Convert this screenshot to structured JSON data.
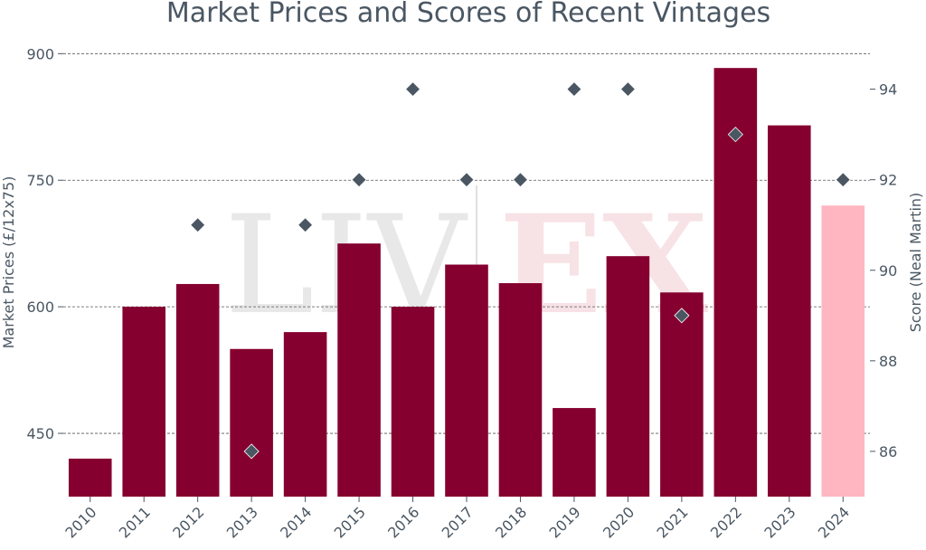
{
  "chart_data": {
    "type": "bar",
    "title": "Market Prices and Scores of Recent Vintages",
    "ylabel": "Market Prices (£/12x75)",
    "y2label": "Score (Neal Martin)",
    "categories": [
      "2010",
      "2011",
      "2012",
      "2013",
      "2014",
      "2015",
      "2016",
      "2017",
      "2018",
      "2019",
      "2020",
      "2021",
      "2022",
      "2023",
      "2024"
    ],
    "series": [
      {
        "name": "",
        "values": [
          420,
          600,
          627,
          550,
          570,
          675,
          600,
          650,
          628,
          480,
          660,
          617,
          883,
          815,
          720
        ],
        "colors": [
          "#85002f",
          "#85002f",
          "#85002f",
          "#85002f",
          "#85002f",
          "#85002f",
          "#85002f",
          "#85002f",
          "#85002f",
          "#85002f",
          "#85002f",
          "#85002f",
          "#85002f",
          "#85002f",
          "#ffb6c1"
        ]
      },
      {
        "name": "",
        "axis": "right",
        "marker": "diamond",
        "color": "#4a5763",
        "values": [
          null,
          null,
          91,
          86,
          91,
          92,
          94,
          92,
          92,
          94,
          94,
          89,
          93,
          null,
          92
        ]
      }
    ],
    "ylim": [
      375,
      925
    ],
    "yticks": [
      450,
      600,
      750,
      900
    ],
    "y2lim": [
      85,
      95.25
    ],
    "y2ticks": [
      86,
      88,
      90,
      92,
      94
    ],
    "grid": true,
    "watermark": [
      "LIV",
      "EX"
    ]
  }
}
